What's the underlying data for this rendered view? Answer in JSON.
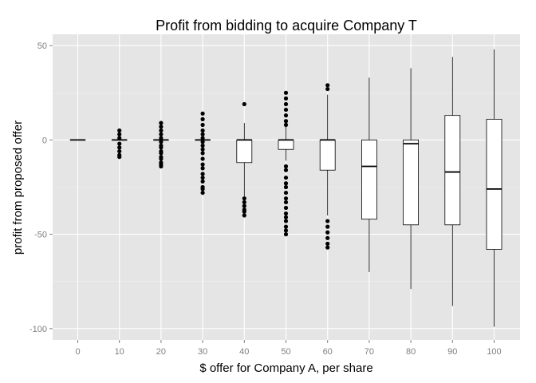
{
  "chart_data": {
    "type": "boxplot",
    "title": "Profit from bidding to acquire Company T",
    "xlabel": "$ offer for Company A, per share",
    "ylabel": "profit from proposed offer",
    "categories": [
      "0",
      "10",
      "20",
      "30",
      "40",
      "50",
      "60",
      "70",
      "80",
      "90",
      "100"
    ],
    "ylim": [
      -106,
      56
    ],
    "yticks": [
      50,
      0,
      -50,
      -100
    ],
    "grid": true,
    "colors": {
      "panel": "#e5e5e5",
      "grid_major": "#ffffff",
      "grid_minor": "#f2f2f2",
      "box_fill": "#ffffff",
      "stroke": "#000000",
      "tick_label": "#7f7f7f"
    },
    "boxes": [
      {
        "category": "0",
        "q1": 0,
        "median": 0,
        "q3": 0,
        "whisker_low": 0,
        "whisker_high": 0,
        "outliers": []
      },
      {
        "category": "10",
        "q1": 0,
        "median": 0,
        "q3": 0,
        "whisker_low": 0,
        "whisker_high": 0,
        "outliers": [
          5,
          3,
          1,
          -2,
          -4,
          -6,
          -8,
          -9
        ]
      },
      {
        "category": "20",
        "q1": 0,
        "median": 0,
        "q3": 0,
        "whisker_low": 0,
        "whisker_high": 0,
        "outliers": [
          9,
          7,
          5,
          3,
          1,
          -1,
          -3,
          -4,
          -6,
          -7,
          -9,
          -10,
          -12,
          -13,
          -14
        ]
      },
      {
        "category": "30",
        "q1": 0,
        "median": 0,
        "q3": 0,
        "whisker_low": 0,
        "whisker_high": 0,
        "outliers": [
          14,
          11,
          8,
          5,
          3,
          1,
          -1,
          -3,
          -5,
          -7,
          -10,
          -13,
          -15,
          -18,
          -20,
          -22,
          -25,
          -26,
          -28
        ]
      },
      {
        "category": "40",
        "q1": -12,
        "median": 0,
        "q3": 0,
        "whisker_low": -30,
        "whisker_high": 9,
        "outliers": [
          19,
          -31,
          -33,
          -35,
          -37,
          -38,
          -40
        ]
      },
      {
        "category": "50",
        "q1": -5,
        "median": 0,
        "q3": 0,
        "whisker_low": -11,
        "whisker_high": 7,
        "outliers": [
          25,
          22,
          19,
          16,
          13,
          10,
          8,
          -14,
          -16,
          -20,
          -23,
          -25,
          -28,
          -31,
          -33,
          -36,
          -39,
          -41,
          -43,
          -46,
          -48,
          -50
        ]
      },
      {
        "category": "60",
        "q1": -16,
        "median": 0,
        "q3": 0,
        "whisker_low": -40,
        "whisker_high": 24,
        "outliers": [
          29,
          27,
          -43,
          -46,
          -49,
          -52,
          -55,
          -57
        ]
      },
      {
        "category": "70",
        "q1": -42,
        "median": -14,
        "q3": 0,
        "whisker_low": -70,
        "whisker_high": 33,
        "outliers": []
      },
      {
        "category": "80",
        "q1": -45,
        "median": -2,
        "q3": 0,
        "whisker_low": -79,
        "whisker_high": 38,
        "outliers": []
      },
      {
        "category": "90",
        "q1": -45,
        "median": -17,
        "q3": 13,
        "whisker_low": -88,
        "whisker_high": 44,
        "outliers": []
      },
      {
        "category": "100",
        "q1": -58,
        "median": -26,
        "q3": 11,
        "whisker_low": -99,
        "whisker_high": 48,
        "outliers": []
      }
    ]
  }
}
